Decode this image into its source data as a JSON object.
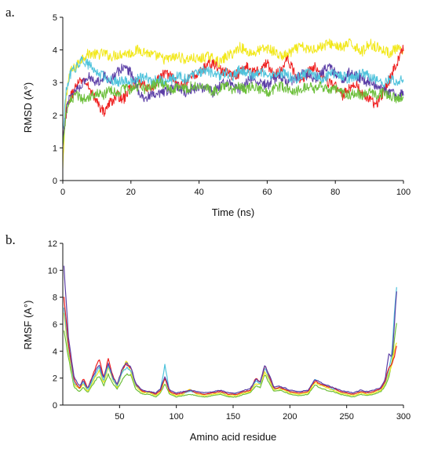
{
  "chart_data": [
    {
      "type": "line",
      "panel_label": "a.",
      "xlabel": "Time (ns)",
      "ylabel": "RMSD (A°)",
      "xlim": [
        0,
        100
      ],
      "ylim": [
        0,
        5
      ],
      "xticks": [
        0,
        20,
        40,
        60,
        80,
        100
      ],
      "yticks": [
        0,
        1,
        2,
        3,
        4,
        5
      ],
      "grid": false,
      "legend": "none",
      "x": [
        0,
        1,
        2,
        4,
        6,
        8,
        10,
        12,
        14,
        16,
        18,
        20,
        22,
        24,
        26,
        28,
        30,
        32,
        34,
        36,
        38,
        40,
        42,
        44,
        46,
        48,
        50,
        52,
        54,
        56,
        58,
        60,
        62,
        64,
        66,
        68,
        70,
        72,
        74,
        76,
        78,
        80,
        82,
        84,
        86,
        88,
        90,
        92,
        94,
        96,
        98,
        100
      ],
      "series": [
        {
          "color": "#f2e81c",
          "values": [
            0.3,
            2.6,
            3.3,
            3.5,
            3.8,
            3.9,
            3.85,
            3.9,
            3.8,
            3.85,
            3.9,
            3.9,
            4.0,
            3.95,
            3.85,
            3.8,
            3.7,
            3.75,
            3.8,
            3.7,
            3.75,
            3.7,
            3.8,
            3.75,
            3.6,
            3.8,
            3.9,
            4.1,
            3.95,
            3.9,
            4.0,
            4.05,
            3.95,
            3.8,
            3.85,
            4.0,
            4.1,
            4.0,
            4.05,
            4.1,
            4.2,
            4.15,
            4.05,
            4.2,
            4.1,
            3.95,
            4.2,
            4.1,
            4.0,
            3.9,
            4.05,
            3.9
          ]
        },
        {
          "color": "#ef2020",
          "values": [
            1.2,
            2.0,
            2.5,
            2.9,
            3.1,
            2.8,
            2.4,
            2.1,
            2.4,
            2.6,
            2.5,
            2.9,
            3.0,
            2.9,
            2.8,
            3.1,
            3.3,
            3.2,
            2.9,
            3.0,
            3.2,
            3.3,
            3.5,
            3.6,
            3.4,
            3.3,
            3.2,
            3.3,
            3.5,
            3.3,
            3.4,
            3.6,
            3.2,
            3.4,
            3.7,
            3.3,
            3.1,
            3.3,
            3.5,
            3.3,
            3.0,
            2.9,
            2.6,
            2.8,
            3.0,
            2.6,
            2.5,
            2.3,
            2.7,
            3.1,
            3.6,
            4.1
          ]
        },
        {
          "color": "#5b3ea6",
          "values": [
            1.0,
            2.2,
            2.6,
            2.8,
            3.0,
            3.2,
            3.0,
            3.2,
            3.1,
            3.3,
            3.5,
            3.3,
            2.8,
            2.5,
            2.6,
            2.6,
            2.7,
            2.8,
            2.9,
            2.7,
            2.8,
            2.9,
            2.8,
            2.7,
            2.9,
            3.0,
            2.9,
            2.8,
            3.0,
            3.2,
            3.0,
            2.9,
            3.1,
            3.2,
            3.0,
            3.1,
            3.3,
            3.2,
            3.1,
            3.3,
            3.5,
            3.3,
            3.1,
            3.3,
            3.2,
            3.1,
            3.0,
            2.9,
            2.8,
            2.7,
            2.6,
            2.7
          ]
        },
        {
          "color": "#4fc3dc",
          "values": [
            1.5,
            2.7,
            3.2,
            3.5,
            3.7,
            3.5,
            3.3,
            3.2,
            3.1,
            3.0,
            3.1,
            3.0,
            3.1,
            3.2,
            3.0,
            3.1,
            3.0,
            3.1,
            3.2,
            3.1,
            3.2,
            3.3,
            3.4,
            3.3,
            3.2,
            3.3,
            3.2,
            3.4,
            3.3,
            3.2,
            3.3,
            3.3,
            3.2,
            3.3,
            3.2,
            3.1,
            3.2,
            3.3,
            3.2,
            3.1,
            3.2,
            3.3,
            3.2,
            3.1,
            3.2,
            3.3,
            3.2,
            3.1,
            3.0,
            3.1,
            3.0,
            3.1
          ]
        },
        {
          "color": "#6cbf3a",
          "values": [
            1.1,
            2.1,
            2.4,
            2.6,
            2.5,
            2.6,
            2.7,
            2.6,
            2.8,
            2.7,
            2.8,
            2.8,
            2.9,
            2.8,
            2.9,
            3.0,
            2.9,
            2.8,
            2.9,
            2.8,
            2.9,
            2.8,
            2.9,
            2.7,
            2.8,
            2.9,
            2.8,
            2.9,
            2.8,
            2.9,
            2.8,
            2.7,
            2.8,
            2.9,
            2.8,
            2.7,
            2.8,
            2.9,
            2.8,
            2.9,
            2.7,
            2.8,
            2.7,
            2.6,
            2.7,
            2.6,
            2.7,
            2.6,
            2.7,
            2.6,
            2.5,
            2.6
          ]
        }
      ]
    },
    {
      "type": "line",
      "panel_label": "b.",
      "xlabel": "Amino acid residue",
      "ylabel": "RMSF (A°)",
      "xlim": [
        0,
        300
      ],
      "ylim": [
        0,
        12
      ],
      "xticks": [
        50,
        100,
        150,
        200,
        250,
        300
      ],
      "yticks": [
        0,
        2,
        4,
        6,
        8,
        10,
        12
      ],
      "grid": false,
      "legend": "none",
      "x": [
        1,
        5,
        10,
        15,
        18,
        22,
        27,
        32,
        36,
        40,
        44,
        48,
        52,
        56,
        60,
        64,
        70,
        76,
        82,
        86,
        90,
        94,
        100,
        106,
        112,
        118,
        125,
        132,
        139,
        146,
        153,
        160,
        165,
        170,
        174,
        178,
        182,
        186,
        190,
        195,
        200,
        208,
        216,
        222,
        226,
        232,
        238,
        244,
        250,
        256,
        262,
        268,
        274,
        280,
        284,
        287,
        290,
        292,
        294
      ],
      "series": [
        {
          "color": "#6cbf3a",
          "values": [
            5.5,
            3.5,
            1.3,
            1.0,
            1.3,
            0.9,
            1.6,
            2.2,
            1.4,
            2.3,
            1.6,
            1.2,
            1.8,
            2.3,
            2.2,
            1.2,
            0.8,
            0.8,
            0.6,
            0.9,
            1.6,
            0.8,
            0.6,
            0.7,
            0.8,
            0.7,
            0.6,
            0.7,
            0.8,
            0.6,
            0.6,
            0.8,
            0.9,
            1.4,
            1.3,
            2.3,
            1.6,
            1.0,
            1.1,
            1.0,
            0.8,
            0.7,
            0.8,
            1.5,
            1.3,
            1.1,
            1.0,
            0.8,
            0.7,
            0.6,
            0.8,
            0.7,
            0.8,
            1.0,
            1.4,
            2.0,
            3.2,
            4.8,
            6.1
          ]
        },
        {
          "color": "#f2e81c",
          "values": [
            6.8,
            4.0,
            1.5,
            1.2,
            1.6,
            1.0,
            1.8,
            2.6,
            1.6,
            2.8,
            1.9,
            1.3,
            2.4,
            3.4,
            2.4,
            1.4,
            0.9,
            0.9,
            0.7,
            1.0,
            2.0,
            0.9,
            0.7,
            0.8,
            1.2,
            0.8,
            0.7,
            0.8,
            0.9,
            0.7,
            0.7,
            0.9,
            1.0,
            1.6,
            1.5,
            2.5,
            1.8,
            1.1,
            1.2,
            1.1,
            0.9,
            0.8,
            0.9,
            1.7,
            1.5,
            1.3,
            1.1,
            0.9,
            0.8,
            0.7,
            0.9,
            0.8,
            0.9,
            1.1,
            1.6,
            2.3,
            3.0,
            4.0,
            4.7
          ]
        },
        {
          "color": "#4fc3dc",
          "values": [
            7.2,
            4.2,
            1.6,
            1.3,
            1.7,
            1.1,
            2.0,
            2.8,
            1.8,
            3.0,
            2.0,
            1.4,
            2.4,
            2.8,
            2.6,
            1.5,
            1.0,
            1.0,
            0.8,
            1.2,
            3.0,
            1.0,
            0.8,
            0.9,
            1.0,
            0.9,
            0.8,
            0.9,
            1.0,
            0.8,
            0.8,
            1.0,
            1.1,
            1.8,
            1.6,
            2.8,
            2.0,
            1.2,
            1.3,
            1.2,
            1.0,
            0.9,
            1.0,
            1.9,
            1.6,
            1.4,
            1.2,
            1.0,
            0.9,
            0.8,
            1.0,
            0.9,
            1.0,
            1.2,
            1.7,
            2.5,
            4.0,
            6.8,
            8.7
          ]
        },
        {
          "color": "#ef2020",
          "values": [
            8.0,
            4.5,
            1.8,
            1.2,
            2.0,
            1.2,
            2.4,
            3.4,
            2.0,
            3.4,
            2.2,
            1.5,
            2.6,
            3.0,
            2.8,
            1.6,
            1.0,
            1.0,
            0.8,
            1.1,
            2.0,
            1.0,
            0.8,
            0.9,
            1.1,
            0.9,
            0.8,
            0.9,
            1.0,
            0.8,
            0.8,
            1.0,
            1.1,
            2.0,
            1.7,
            2.9,
            2.1,
            1.2,
            1.3,
            1.2,
            1.0,
            0.9,
            1.0,
            1.8,
            1.6,
            1.4,
            1.3,
            1.0,
            0.9,
            0.8,
            1.0,
            0.9,
            1.0,
            1.2,
            1.8,
            2.8,
            3.0,
            3.6,
            4.4
          ]
        },
        {
          "color": "#5b3ea6",
          "values": [
            10.3,
            5.0,
            2.0,
            1.4,
            1.8,
            1.2,
            2.2,
            3.0,
            2.0,
            3.1,
            2.1,
            1.5,
            2.6,
            3.1,
            2.9,
            1.6,
            1.1,
            1.0,
            0.9,
            1.2,
            2.1,
            1.1,
            0.9,
            1.0,
            1.1,
            1.0,
            0.9,
            1.0,
            1.1,
            0.9,
            0.9,
            1.1,
            1.2,
            1.9,
            1.7,
            3.0,
            2.2,
            1.3,
            1.4,
            1.3,
            1.1,
            1.0,
            1.1,
            1.9,
            1.7,
            1.5,
            1.3,
            1.1,
            1.0,
            0.9,
            1.1,
            1.0,
            1.1,
            1.3,
            1.9,
            3.8,
            3.6,
            6.0,
            8.5
          ]
        }
      ]
    }
  ]
}
